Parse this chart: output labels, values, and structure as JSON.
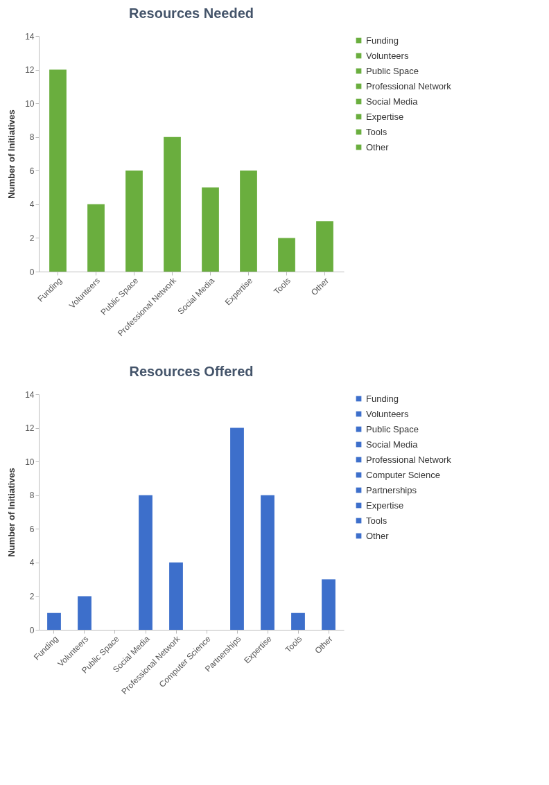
{
  "chart_data": [
    {
      "type": "bar",
      "title": "Resources Needed",
      "ylabel": "Number of Initiatives",
      "categories": [
        "Funding",
        "Volunteers",
        "Public Space",
        "Professional Network",
        "Social Media",
        "Expertise",
        "Tools",
        "Other"
      ],
      "stacked": true,
      "ylim": [
        0,
        14
      ],
      "yticks": [
        0,
        2,
        4,
        6,
        8,
        10,
        12,
        14
      ],
      "legend": "right",
      "series": [
        {
          "name": "Funding",
          "color": "#6aae3e",
          "values": [
            12,
            null,
            null,
            null,
            null,
            null,
            null,
            null
          ]
        },
        {
          "name": "Volunteers",
          "color": "#6aae3e",
          "values": [
            null,
            4,
            null,
            null,
            null,
            null,
            null,
            null
          ]
        },
        {
          "name": "Public Space",
          "color": "#6aae3e",
          "values": [
            null,
            null,
            6,
            null,
            null,
            null,
            null,
            null
          ]
        },
        {
          "name": "Professional Network",
          "color": "#6aae3e",
          "values": [
            null,
            null,
            null,
            8,
            null,
            null,
            null,
            null
          ]
        },
        {
          "name": "Social Media",
          "color": "#6aae3e",
          "values": [
            null,
            null,
            null,
            null,
            5,
            null,
            null,
            null
          ]
        },
        {
          "name": "Expertise",
          "color": "#6aae3e",
          "values": [
            null,
            null,
            null,
            null,
            null,
            6,
            null,
            null
          ]
        },
        {
          "name": "Tools",
          "color": "#6aae3e",
          "values": [
            null,
            null,
            null,
            null,
            null,
            null,
            2,
            null
          ]
        },
        {
          "name": "Other",
          "color": "#6aae3e",
          "values": [
            null,
            null,
            null,
            null,
            null,
            null,
            null,
            3
          ]
        }
      ]
    },
    {
      "type": "bar",
      "title": "Resources Offered",
      "ylabel": "Number of Initiatives",
      "categories": [
        "Funding",
        "Volunteers",
        "Public Space",
        "Social Media",
        "Professional Network",
        "Computer Science",
        "Partnerships",
        "Expertise",
        "Tools",
        "Other"
      ],
      "stacked": true,
      "ylim": [
        0,
        14
      ],
      "yticks": [
        0,
        2,
        4,
        6,
        8,
        10,
        12,
        14
      ],
      "legend": "right",
      "series": [
        {
          "name": "Funding",
          "color": "#3d6fcb",
          "values": [
            1,
            null,
            null,
            null,
            null,
            null,
            null,
            null,
            null,
            null
          ]
        },
        {
          "name": "Volunteers",
          "color": "#3d6fcb",
          "values": [
            null,
            2,
            null,
            null,
            null,
            null,
            null,
            null,
            null,
            null
          ]
        },
        {
          "name": "Public Space",
          "color": "#3d6fcb",
          "values": [
            null,
            null,
            0,
            null,
            null,
            null,
            null,
            null,
            null,
            null
          ]
        },
        {
          "name": "Social Media",
          "color": "#3d6fcb",
          "values": [
            null,
            null,
            null,
            8,
            null,
            null,
            null,
            null,
            null,
            null
          ]
        },
        {
          "name": "Professional Network",
          "color": "#3d6fcb",
          "values": [
            null,
            null,
            null,
            null,
            4,
            null,
            null,
            null,
            null,
            null
          ]
        },
        {
          "name": "Computer Science",
          "color": "#3d6fcb",
          "values": [
            null,
            null,
            null,
            null,
            null,
            0,
            null,
            null,
            null,
            null
          ]
        },
        {
          "name": "Partnerships",
          "color": "#3d6fcb",
          "values": [
            null,
            null,
            null,
            null,
            null,
            null,
            12,
            null,
            null,
            null
          ]
        },
        {
          "name": "Expertise",
          "color": "#3d6fcb",
          "values": [
            null,
            null,
            null,
            null,
            null,
            null,
            null,
            8,
            null,
            null
          ]
        },
        {
          "name": "Tools",
          "color": "#3d6fcb",
          "values": [
            null,
            null,
            null,
            null,
            null,
            null,
            null,
            null,
            1,
            null
          ]
        },
        {
          "name": "Other",
          "color": "#3d6fcb",
          "values": [
            null,
            null,
            null,
            null,
            null,
            null,
            null,
            null,
            null,
            3
          ]
        }
      ]
    }
  ]
}
